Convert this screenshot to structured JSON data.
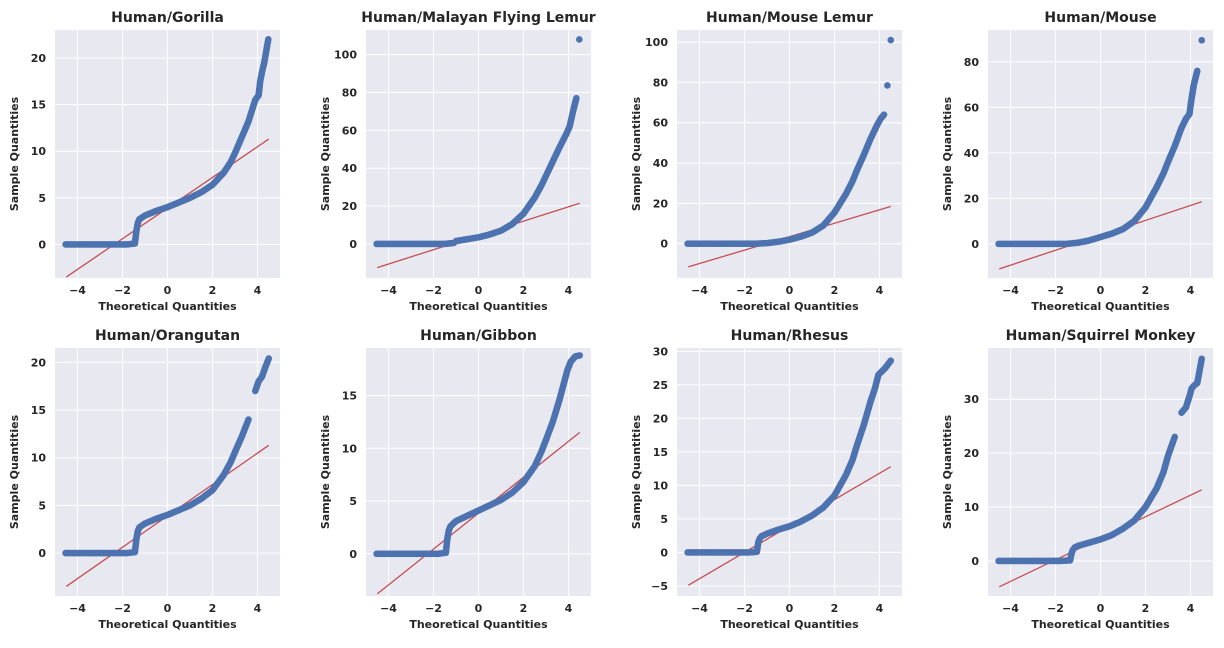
{
  "style": {
    "marker_color": "#4c72b0",
    "line_color": "#c44e52",
    "axes_background": "#e8e8f0",
    "grid_color": "#ffffff",
    "grid": true
  },
  "chart_data": [
    {
      "type": "scatter",
      "title": "Human/Gorilla",
      "xlabel": "Theoretical Quantities",
      "ylabel": "Sample Quantities",
      "xlim": [
        -5,
        5
      ],
      "ylim": [
        -3.6,
        23
      ],
      "xticks": [
        -4,
        -2,
        0,
        2,
        4
      ],
      "yticks": [
        0,
        5,
        10,
        15,
        20
      ],
      "reference_line": {
        "x": [
          -4.5,
          4.5
        ],
        "y": [
          -3.5,
          11.3
        ]
      },
      "series": [
        {
          "x": [
            -4.53,
            -3.5,
            -2.5,
            -1.8,
            -1.45,
            -1.38,
            -1.32,
            -1.25,
            -1.0,
            -0.5,
            0.0,
            0.5,
            1.0,
            1.5,
            2.0,
            2.5,
            2.8,
            3.0,
            3.3,
            3.6,
            3.9,
            4.05,
            4.12,
            4.2,
            4.3,
            4.48
          ],
          "y": [
            0,
            0,
            0,
            0,
            0.1,
            1.5,
            2.3,
            2.7,
            3.1,
            3.6,
            4.0,
            4.5,
            5.0,
            5.6,
            6.4,
            7.7,
            8.8,
            9.8,
            11.5,
            13.2,
            15.5,
            16.0,
            17.5,
            18.5,
            19.5,
            22.0
          ]
        }
      ]
    },
    {
      "type": "scatter",
      "title": "Human/Malayan Flying Lemur",
      "xlabel": "Theoretical Quantities",
      "ylabel": "Sample Quantities",
      "xlim": [
        -5,
        5
      ],
      "ylim": [
        -18,
        113
      ],
      "xticks": [
        -4,
        -2,
        0,
        2,
        4
      ],
      "yticks": [
        0,
        20,
        40,
        60,
        80,
        100
      ],
      "reference_line": {
        "x": [
          -4.5,
          4.5
        ],
        "y": [
          -12.5,
          21.5
        ]
      },
      "series": [
        {
          "x": [
            -4.53,
            -3.5,
            -2.5,
            -1.5,
            -1.1,
            -1.0,
            -0.5,
            0.0,
            0.5,
            1.0,
            1.5,
            2.0,
            2.5,
            2.8,
            3.0,
            3.3,
            3.6,
            3.9,
            4.05,
            4.2,
            4.35,
            4.48
          ],
          "y": [
            0,
            0,
            0,
            0,
            0.5,
            1.5,
            2.5,
            3.5,
            5.0,
            7.0,
            10.5,
            16.0,
            24.5,
            31.0,
            36.0,
            43.5,
            51.0,
            58.0,
            62.0,
            70.0,
            77.0,
            108.0
          ]
        }
      ]
    },
    {
      "type": "scatter",
      "title": "Human/Mouse Lemur",
      "xlabel": "Theoretical Quantities",
      "ylabel": "Sample Quantities",
      "xlim": [
        -5,
        5
      ],
      "ylim": [
        -17,
        106
      ],
      "xticks": [
        -4,
        -2,
        0,
        2,
        4
      ],
      "yticks": [
        0,
        20,
        40,
        60,
        80,
        100
      ],
      "reference_line": {
        "x": [
          -4.5,
          4.5
        ],
        "y": [
          -11.5,
          18.5
        ]
      },
      "series": [
        {
          "x": [
            -4.53,
            -3.5,
            -2.5,
            -1.5,
            -1.0,
            -0.5,
            0.0,
            0.5,
            1.0,
            1.5,
            2.0,
            2.5,
            2.8,
            3.0,
            3.3,
            3.6,
            3.9,
            4.05,
            4.2,
            4.35,
            4.5
          ],
          "y": [
            0,
            0,
            0,
            0,
            0.3,
            1.0,
            2.0,
            3.5,
            5.5,
            9.0,
            15.5,
            24.5,
            31.0,
            36.5,
            44.0,
            52.0,
            59.0,
            62.0,
            64.0,
            78.5,
            101.0
          ]
        }
      ]
    },
    {
      "type": "scatter",
      "title": "Human/Mouse",
      "xlabel": "Theoretical Quantities",
      "ylabel": "Sample Quantities",
      "xlim": [
        -5,
        5
      ],
      "ylim": [
        -15,
        94
      ],
      "xticks": [
        -4,
        -2,
        0,
        2,
        4
      ],
      "yticks": [
        0,
        20,
        40,
        60,
        80
      ],
      "reference_line": {
        "x": [
          -4.5,
          4.5
        ],
        "y": [
          -11.0,
          18.5
        ]
      },
      "series": [
        {
          "x": [
            -4.53,
            -3.5,
            -2.5,
            -1.5,
            -1.0,
            -0.5,
            0.0,
            0.5,
            1.0,
            1.5,
            2.0,
            2.5,
            2.8,
            3.0,
            3.3,
            3.6,
            3.8,
            3.95,
            4.05,
            4.15,
            4.3,
            4.5
          ],
          "y": [
            0,
            0,
            0,
            0,
            0.5,
            1.5,
            3.0,
            4.5,
            6.5,
            10.0,
            16.0,
            25.0,
            31.0,
            36.0,
            43.0,
            51.0,
            55.0,
            57.0,
            64.0,
            70.0,
            76.0,
            89.5
          ]
        }
      ]
    },
    {
      "type": "scatter",
      "title": "Human/Orangutan",
      "xlabel": "Theoretical Quantities",
      "ylabel": "Sample Quantities",
      "xlim": [
        -5,
        5
      ],
      "ylim": [
        -4.5,
        21.5
      ],
      "xticks": [
        -4,
        -2,
        0,
        2,
        4
      ],
      "yticks": [
        0,
        5,
        10,
        15,
        20
      ],
      "reference_line": {
        "x": [
          -4.5,
          4.5
        ],
        "y": [
          -3.5,
          11.3
        ]
      },
      "series": [
        {
          "x": [
            -4.53,
            -3.5,
            -2.5,
            -1.8,
            -1.45,
            -1.38,
            -1.32,
            -1.25,
            -1.0,
            -0.5,
            0.0,
            0.5,
            1.0,
            1.5,
            2.0,
            2.5,
            2.8,
            3.0,
            3.3,
            3.6,
            3.9,
            4.05,
            4.2,
            4.35,
            4.5
          ],
          "y": [
            0,
            0,
            0,
            0,
            0.1,
            1.5,
            2.3,
            2.7,
            3.1,
            3.6,
            4.0,
            4.5,
            5.0,
            5.7,
            6.6,
            8.2,
            9.5,
            10.6,
            12.2,
            14.0,
            17.0,
            18.0,
            18.5,
            19.5,
            20.4
          ]
        }
      ]
    },
    {
      "type": "scatter",
      "title": "Human/Gibbon",
      "xlabel": "Theoretical Quantities",
      "ylabel": "Sample Quantities",
      "xlim": [
        -5,
        5
      ],
      "ylim": [
        -4.0,
        19.5
      ],
      "xticks": [
        -4,
        -2,
        0,
        2,
        4
      ],
      "yticks": [
        0,
        5,
        10,
        15
      ],
      "reference_line": {
        "x": [
          -4.5,
          4.5
        ],
        "y": [
          -3.8,
          11.5
        ]
      },
      "series": [
        {
          "x": [
            -4.53,
            -3.5,
            -2.5,
            -1.8,
            -1.45,
            -1.38,
            -1.32,
            -1.25,
            -1.0,
            -0.5,
            0.0,
            0.5,
            1.0,
            1.5,
            2.0,
            2.5,
            2.8,
            3.0,
            3.3,
            3.6,
            3.8,
            3.95,
            4.1,
            4.3,
            4.5
          ],
          "y": [
            0,
            0,
            0,
            0,
            0.1,
            1.5,
            2.2,
            2.6,
            3.1,
            3.6,
            4.1,
            4.6,
            5.1,
            5.8,
            6.8,
            8.3,
            9.7,
            10.8,
            12.5,
            14.6,
            16.2,
            17.4,
            18.2,
            18.7,
            18.8
          ]
        }
      ]
    },
    {
      "type": "scatter",
      "title": "Human/Rhesus",
      "xlabel": "Theoretical Quantities",
      "ylabel": "Sample Quantities",
      "xlim": [
        -5,
        5
      ],
      "ylim": [
        -6.5,
        30.5
      ],
      "xticks": [
        -4,
        -2,
        0,
        2,
        4
      ],
      "yticks": [
        -5,
        0,
        5,
        10,
        15,
        20,
        25,
        30
      ],
      "reference_line": {
        "x": [
          -4.5,
          4.5
        ],
        "y": [
          -4.9,
          12.8
        ]
      },
      "series": [
        {
          "x": [
            -4.53,
            -3.5,
            -2.5,
            -1.8,
            -1.45,
            -1.38,
            -1.32,
            -1.25,
            -1.0,
            -0.5,
            0.0,
            0.5,
            1.0,
            1.5,
            2.0,
            2.5,
            2.8,
            3.0,
            3.3,
            3.6,
            3.8,
            3.95,
            4.1,
            4.25,
            4.5
          ],
          "y": [
            0,
            0,
            0,
            0,
            0.1,
            1.6,
            2.1,
            2.4,
            2.8,
            3.4,
            3.9,
            4.6,
            5.5,
            6.7,
            8.5,
            11.5,
            13.8,
            16.0,
            19.0,
            22.5,
            24.5,
            26.5,
            27.0,
            27.5,
            28.6
          ]
        }
      ]
    },
    {
      "type": "scatter",
      "title": "Human/Squirrel Monkey",
      "xlabel": "Theoretical Quantities",
      "ylabel": "Sample Quantities",
      "xlim": [
        -5,
        5
      ],
      "ylim": [
        -6.5,
        39.5
      ],
      "xticks": [
        -4,
        -2,
        0,
        2,
        4
      ],
      "yticks": [
        0,
        10,
        20,
        30
      ],
      "reference_line": {
        "x": [
          -4.5,
          4.5
        ],
        "y": [
          -4.8,
          13.2
        ]
      },
      "series": [
        {
          "x": [
            -4.53,
            -3.5,
            -2.5,
            -1.8,
            -1.35,
            -1.28,
            -1.22,
            -1.15,
            -1.0,
            -0.5,
            0.0,
            0.5,
            1.0,
            1.5,
            2.0,
            2.5,
            2.8,
            3.0,
            3.3,
            3.6,
            3.8,
            3.95,
            4.05,
            4.15,
            4.3,
            4.5
          ],
          "y": [
            0,
            0,
            0,
            0,
            0.1,
            1.5,
            2.1,
            2.5,
            2.8,
            3.4,
            4.0,
            4.8,
            6.0,
            7.5,
            10.0,
            13.5,
            16.5,
            19.5,
            23.0,
            27.5,
            28.5,
            30.5,
            32.0,
            32.5,
            33.0,
            37.5
          ]
        }
      ]
    }
  ]
}
